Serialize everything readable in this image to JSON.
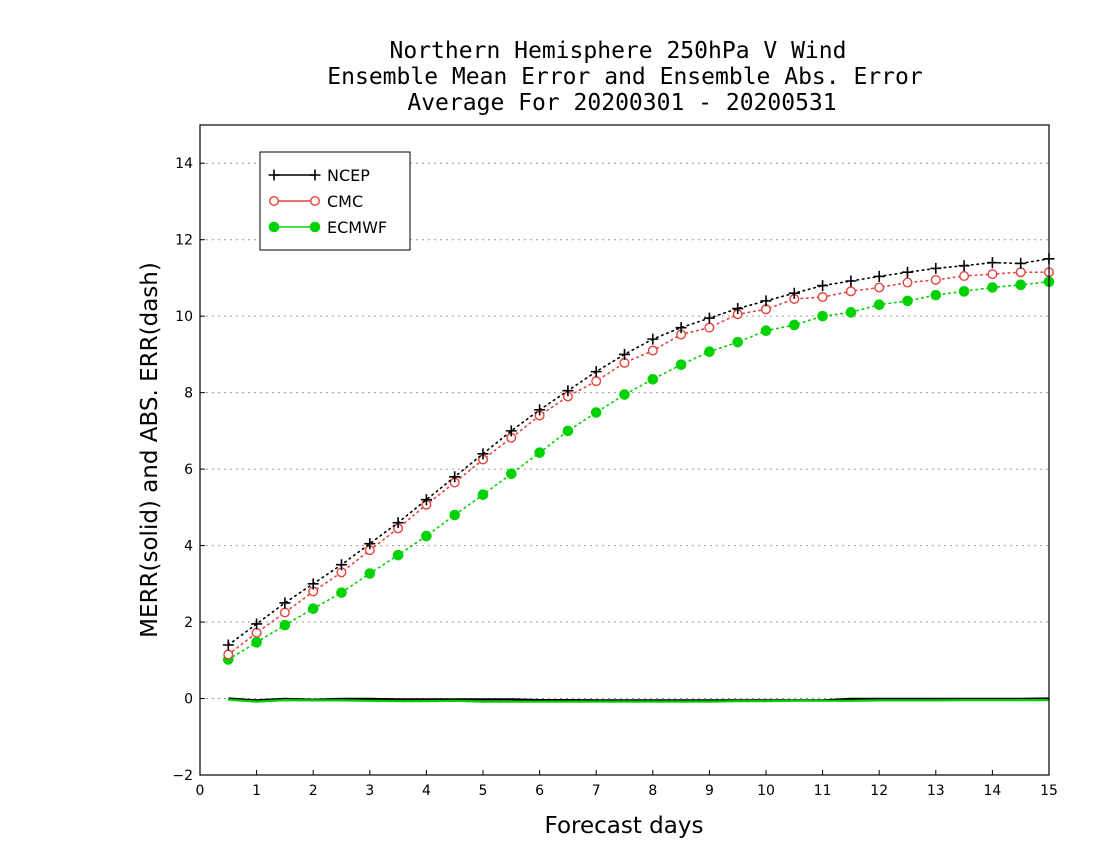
{
  "chart_data": {
    "type": "line",
    "title_lines": [
      "Northern Hemisphere 250hPa V Wind",
      "Ensemble Mean Error and Ensemble Abs. Error",
      "Average For 20200301 - 20200531"
    ],
    "xlabel": "Forecast days",
    "ylabel": "MERR(solid) and ABS. ERR(dash)",
    "xlim": [
      0,
      15
    ],
    "ylim": [
      -2,
      15
    ],
    "xticks": [
      0,
      1,
      2,
      3,
      4,
      5,
      6,
      7,
      8,
      9,
      10,
      11,
      12,
      13,
      14,
      15
    ],
    "yticks": [
      -2,
      0,
      2,
      4,
      6,
      8,
      10,
      12,
      14
    ],
    "grid": "dotted horizontal",
    "legend_position": "top-left",
    "x": [
      0.5,
      1,
      1.5,
      2,
      2.5,
      3,
      3.5,
      4,
      4.5,
      5,
      5.5,
      6,
      6.5,
      7,
      7.5,
      8,
      8.5,
      9,
      9.5,
      10,
      10.5,
      11,
      11.5,
      12,
      12.5,
      13,
      13.5,
      14,
      14.5,
      15
    ],
    "series": [
      {
        "name": "NCEP",
        "color": "#000000",
        "marker": "plus",
        "abs_err": [
          1.4,
          1.95,
          2.5,
          3.0,
          3.5,
          4.05,
          4.6,
          5.2,
          5.8,
          6.4,
          7.0,
          7.55,
          8.05,
          8.55,
          9.0,
          9.4,
          9.7,
          9.95,
          10.2,
          10.4,
          10.6,
          10.8,
          10.92,
          11.04,
          11.15,
          11.25,
          11.32,
          11.4,
          11.38,
          11.5
        ],
        "mean_err": [
          0.0,
          -0.05,
          -0.01,
          -0.03,
          -0.01,
          -0.01,
          -0.02,
          -0.02,
          -0.02,
          -0.02,
          -0.02,
          -0.04,
          -0.04,
          -0.05,
          -0.05,
          -0.05,
          -0.05,
          -0.05,
          -0.05,
          -0.05,
          -0.05,
          -0.05,
          -0.01,
          -0.01,
          -0.01,
          -0.01,
          -0.01,
          -0.01,
          -0.01,
          0.0
        ]
      },
      {
        "name": "CMC",
        "color": "#e8413c",
        "marker": "open-circle",
        "abs_err": [
          1.15,
          1.72,
          2.25,
          2.8,
          3.3,
          3.88,
          4.45,
          5.07,
          5.65,
          6.25,
          6.82,
          7.4,
          7.9,
          8.3,
          8.78,
          9.1,
          9.52,
          9.7,
          10.05,
          10.18,
          10.45,
          10.5,
          10.65,
          10.75,
          10.88,
          10.95,
          11.05,
          11.1,
          11.15,
          11.15
        ]
      },
      {
        "name": "ECMWF",
        "color": "#00d200",
        "marker": "filled-circle",
        "abs_err": [
          1.02,
          1.47,
          1.92,
          2.35,
          2.77,
          3.27,
          3.75,
          4.25,
          4.8,
          5.33,
          5.88,
          6.43,
          7.0,
          7.48,
          7.95,
          8.35,
          8.73,
          9.07,
          9.32,
          9.62,
          9.77,
          10.0,
          10.1,
          10.3,
          10.4,
          10.55,
          10.65,
          10.75,
          10.82,
          10.9
        ],
        "mean_err": [
          -0.03,
          -0.08,
          -0.04,
          -0.05,
          -0.05,
          -0.06,
          -0.07,
          -0.07,
          -0.06,
          -0.08,
          -0.08,
          -0.08,
          -0.08,
          -0.08,
          -0.08,
          -0.08,
          -0.08,
          -0.08,
          -0.07,
          -0.07,
          -0.06,
          -0.06,
          -0.06,
          -0.05,
          -0.05,
          -0.05,
          -0.04,
          -0.04,
          -0.04,
          -0.04
        ]
      }
    ]
  }
}
